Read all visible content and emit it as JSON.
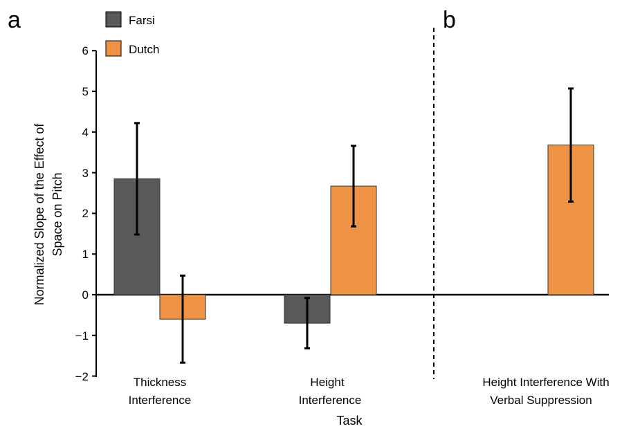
{
  "chart_data": {
    "type": "bar",
    "panels": [
      "a",
      "b"
    ],
    "categories": [
      {
        "lines": [
          "Thickness",
          "Interference"
        ],
        "panel": "a"
      },
      {
        "lines": [
          "Height",
          "Interference"
        ],
        "panel": "a"
      },
      {
        "lines": [
          "Height Interference With",
          "Verbal Suppression"
        ],
        "panel": "b"
      }
    ],
    "series": [
      {
        "name": "Farsi",
        "color": "#58595b",
        "values": [
          2.85,
          -0.7,
          null
        ],
        "error": [
          1.37,
          0.62,
          null
        ]
      },
      {
        "name": "Dutch",
        "color": "#ee9345",
        "values": [
          -0.6,
          2.67,
          3.68
        ],
        "error": [
          1.07,
          0.99,
          1.39
        ]
      }
    ],
    "xlabel": "Task",
    "ylabel_lines": [
      "Normalized Slope of the Effect of",
      "Space on Pitch"
    ],
    "ylim": [
      -2,
      6
    ],
    "yticks": [
      "6",
      "5",
      "4",
      "3",
      "2",
      "1",
      "0",
      "−1",
      "−2"
    ],
    "ytick_values": [
      6,
      5,
      4,
      3,
      2,
      1,
      0,
      -1,
      -2
    ],
    "legend_placement": "top-left",
    "grid": false,
    "separator": "dashed vertical line between panels a and b"
  }
}
